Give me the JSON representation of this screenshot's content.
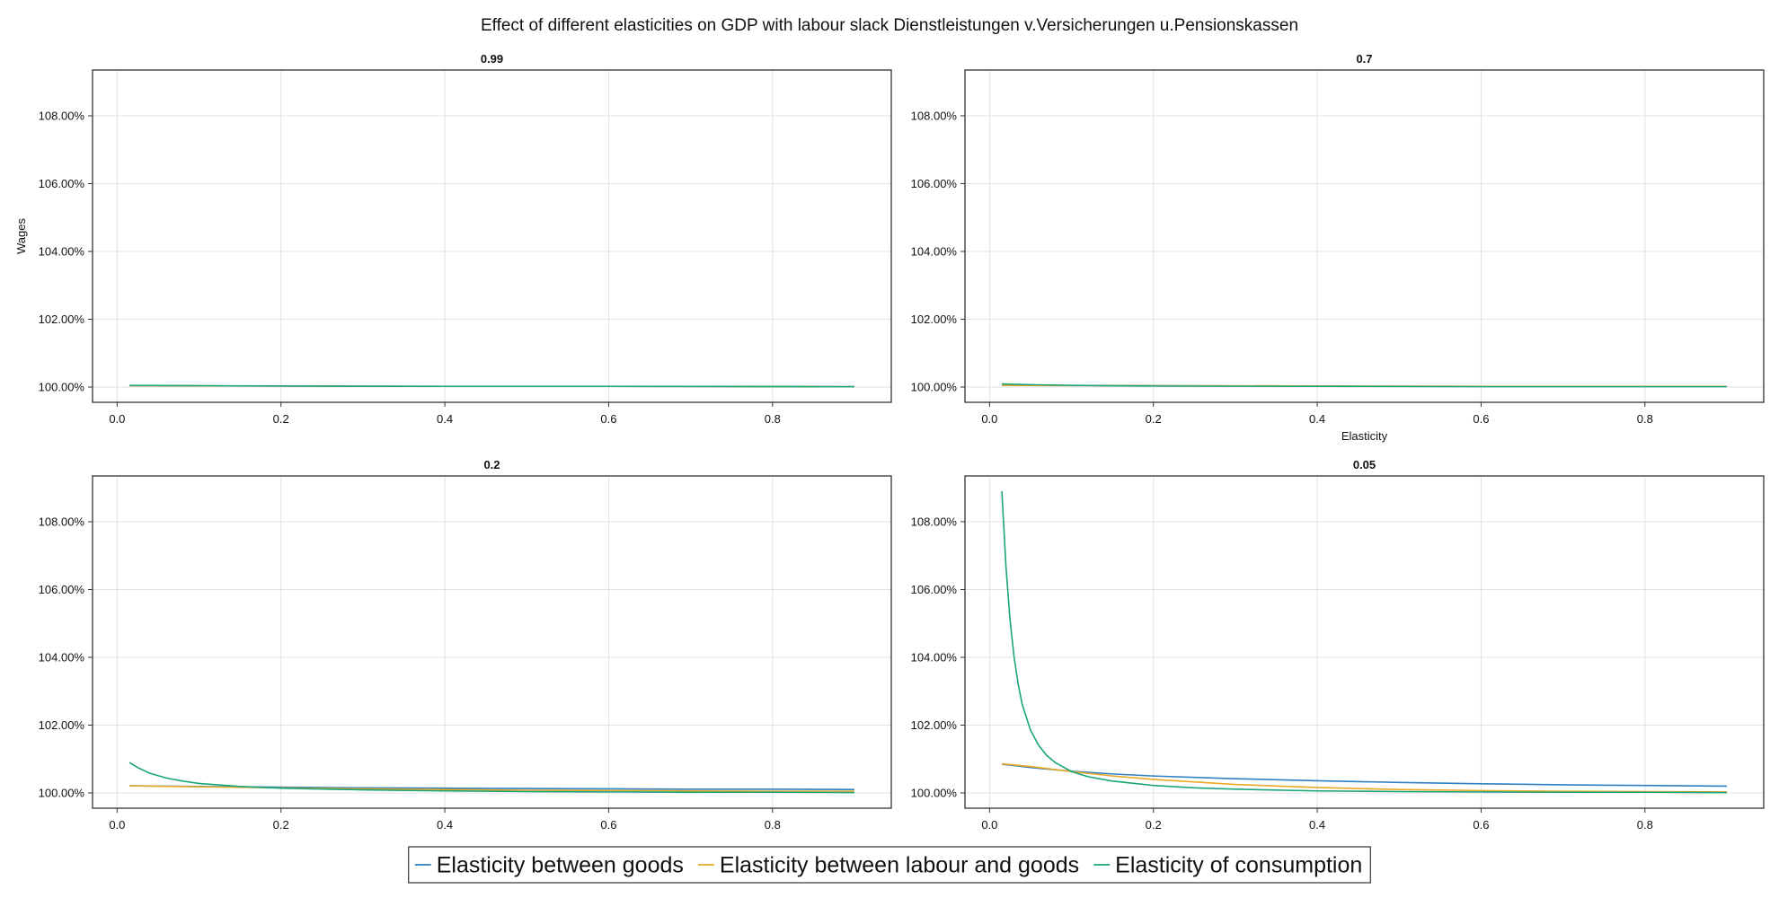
{
  "title": "Effect of different elasticities on GDP with labour slack Dienstleistungen v.Versicherungen u.Pensionskassen",
  "ylabel": "Wages",
  "xlabel": "Elasticity",
  "colors": {
    "Elasticity between goods": "#2f7fc1",
    "Elasticity between labour and goods": "#e9a825",
    "Elasticity of consumption": "#19a57a"
  },
  "chart_data": [
    {
      "type": "line",
      "title": "0.99",
      "xlim": [
        -0.03,
        0.945
      ],
      "ylim": [
        99.55,
        109.35
      ],
      "x_ticks": [
        0.0,
        0.2,
        0.4,
        0.6,
        0.8
      ],
      "x_tick_labels": [
        "0.0",
        "0.2",
        "0.4",
        "0.6",
        "0.8"
      ],
      "y_ticks": [
        100,
        102,
        104,
        106,
        108
      ],
      "y_tick_labels": [
        "100.00%",
        "102.00%",
        "104.00%",
        "106.00%",
        "108.00%"
      ],
      "ylabel": "Wages",
      "xlabel": "",
      "series": [
        {
          "name": "Elasticity between goods",
          "x": [
            0.015,
            0.2,
            0.4,
            0.6,
            0.9
          ],
          "values": [
            100.04,
            100.03,
            100.02,
            100.02,
            100.01
          ]
        },
        {
          "name": "Elasticity between labour and goods",
          "x": [
            0.015,
            0.2,
            0.4,
            0.6,
            0.9
          ],
          "values": [
            100.04,
            100.03,
            100.02,
            100.02,
            100.01
          ]
        },
        {
          "name": "Elasticity of consumption",
          "x": [
            0.015,
            0.2,
            0.4,
            0.6,
            0.9
          ],
          "values": [
            100.05,
            100.03,
            100.02,
            100.02,
            100.01
          ]
        }
      ]
    },
    {
      "type": "line",
      "title": "0.7",
      "xlim": [
        -0.03,
        0.945
      ],
      "ylim": [
        99.55,
        109.35
      ],
      "x_ticks": [
        0.0,
        0.2,
        0.4,
        0.6,
        0.8
      ],
      "x_tick_labels": [
        "0.0",
        "0.2",
        "0.4",
        "0.6",
        "0.8"
      ],
      "y_ticks": [
        100,
        102,
        104,
        106,
        108
      ],
      "y_tick_labels": [
        "100.00%",
        "102.00%",
        "104.00%",
        "106.00%",
        "108.00%"
      ],
      "ylabel": "",
      "xlabel": "Elasticity",
      "series": [
        {
          "name": "Elasticity between goods",
          "x": [
            0.015,
            0.2,
            0.4,
            0.6,
            0.9
          ],
          "values": [
            100.05,
            100.04,
            100.03,
            100.02,
            100.02
          ]
        },
        {
          "name": "Elasticity between labour and goods",
          "x": [
            0.015,
            0.2,
            0.4,
            0.6,
            0.9
          ],
          "values": [
            100.05,
            100.04,
            100.03,
            100.02,
            100.02
          ]
        },
        {
          "name": "Elasticity of consumption",
          "x": [
            0.015,
            0.05,
            0.1,
            0.2,
            0.4,
            0.6,
            0.9
          ],
          "values": [
            100.09,
            100.07,
            100.05,
            100.03,
            100.02,
            100.01,
            100.01
          ]
        }
      ]
    },
    {
      "type": "line",
      "title": "0.2",
      "xlim": [
        -0.03,
        0.945
      ],
      "ylim": [
        99.55,
        109.35
      ],
      "x_ticks": [
        0.0,
        0.2,
        0.4,
        0.6,
        0.8
      ],
      "x_tick_labels": [
        "0.0",
        "0.2",
        "0.4",
        "0.6",
        "0.8"
      ],
      "y_ticks": [
        100,
        102,
        104,
        106,
        108
      ],
      "y_tick_labels": [
        "100.00%",
        "102.00%",
        "104.00%",
        "106.00%",
        "108.00%"
      ],
      "ylabel": "",
      "xlabel": "",
      "series": [
        {
          "name": "Elasticity between goods",
          "x": [
            0.015,
            0.1,
            0.2,
            0.3,
            0.4,
            0.5,
            0.6,
            0.7,
            0.8,
            0.9
          ],
          "values": [
            100.21,
            100.19,
            100.17,
            100.15,
            100.14,
            100.13,
            100.12,
            100.11,
            100.11,
            100.1
          ]
        },
        {
          "name": "Elasticity between labour and goods",
          "x": [
            0.015,
            0.1,
            0.2,
            0.3,
            0.4,
            0.5,
            0.6,
            0.7,
            0.8,
            0.9
          ],
          "values": [
            100.21,
            100.18,
            100.15,
            100.12,
            100.1,
            100.08,
            100.07,
            100.06,
            100.05,
            100.05
          ]
        },
        {
          "name": "Elasticity of consumption",
          "x": [
            0.015,
            0.025,
            0.04,
            0.06,
            0.08,
            0.1,
            0.15,
            0.2,
            0.3,
            0.4,
            0.5,
            0.6,
            0.7,
            0.8,
            0.9
          ],
          "values": [
            100.9,
            100.75,
            100.58,
            100.44,
            100.35,
            100.28,
            100.19,
            100.14,
            100.09,
            100.06,
            100.04,
            100.03,
            100.02,
            100.02,
            100.01
          ]
        }
      ]
    },
    {
      "type": "line",
      "title": "0.05",
      "xlim": [
        -0.03,
        0.945
      ],
      "ylim": [
        99.55,
        109.35
      ],
      "x_ticks": [
        0.0,
        0.2,
        0.4,
        0.6,
        0.8
      ],
      "x_tick_labels": [
        "0.0",
        "0.2",
        "0.4",
        "0.6",
        "0.8"
      ],
      "y_ticks": [
        100,
        102,
        104,
        106,
        108
      ],
      "y_tick_labels": [
        "100.00%",
        "102.00%",
        "104.00%",
        "106.00%",
        "108.00%"
      ],
      "ylabel": "",
      "xlabel": "",
      "series": [
        {
          "name": "Elasticity between goods",
          "x": [
            0.015,
            0.05,
            0.1,
            0.15,
            0.2,
            0.3,
            0.4,
            0.5,
            0.6,
            0.7,
            0.8,
            0.9
          ],
          "values": [
            100.85,
            100.75,
            100.64,
            100.56,
            100.5,
            100.42,
            100.36,
            100.31,
            100.27,
            100.24,
            100.22,
            100.2
          ]
        },
        {
          "name": "Elasticity between labour and goods",
          "x": [
            0.015,
            0.05,
            0.1,
            0.15,
            0.2,
            0.3,
            0.4,
            0.5,
            0.6,
            0.7,
            0.8,
            0.9
          ],
          "values": [
            100.86,
            100.78,
            100.63,
            100.5,
            100.4,
            100.25,
            100.16,
            100.1,
            100.07,
            100.05,
            100.04,
            100.03
          ]
        },
        {
          "name": "Elasticity of consumption",
          "x": [
            0.015,
            0.02,
            0.025,
            0.03,
            0.035,
            0.04,
            0.05,
            0.06,
            0.07,
            0.08,
            0.1,
            0.12,
            0.15,
            0.2,
            0.25,
            0.3,
            0.4,
            0.5,
            0.6,
            0.7,
            0.8,
            0.9
          ],
          "values": [
            108.9,
            106.7,
            105.1,
            104.0,
            103.2,
            102.6,
            101.85,
            101.4,
            101.1,
            100.9,
            100.63,
            100.48,
            100.35,
            100.22,
            100.15,
            100.11,
            100.06,
            100.04,
            100.03,
            100.02,
            100.02,
            100.01
          ]
        }
      ]
    }
  ],
  "legend": {
    "position": "bottom-center",
    "items": [
      "Elasticity between goods",
      "Elasticity between labour and goods",
      "Elasticity of consumption"
    ]
  }
}
